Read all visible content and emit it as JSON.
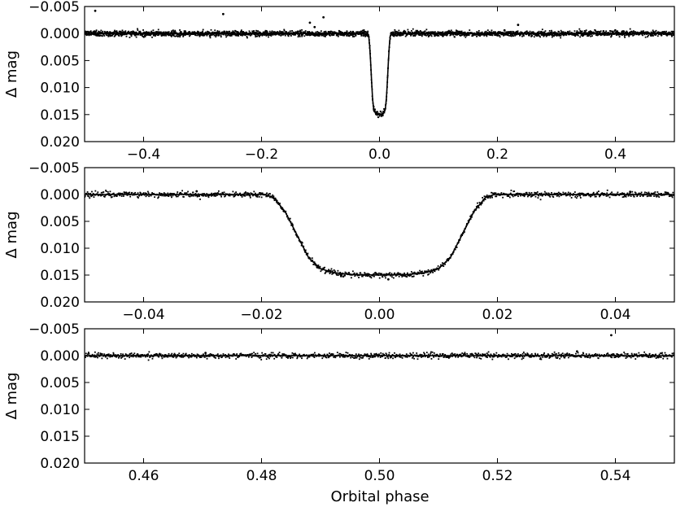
{
  "colors": {
    "data": "#000000",
    "model": "#000000",
    "axes": "#000000",
    "background": "#ffffff"
  },
  "chart_data": [
    {
      "type": "scatter",
      "panel": "top",
      "xlabel": "",
      "ylabel": "Δ mag",
      "xlim": [
        -0.5,
        0.5
      ],
      "ylim": [
        0.02,
        -0.005
      ],
      "y_inverted": true,
      "grid": false,
      "xticks": [
        -0.4,
        -0.2,
        0.0,
        0.2,
        0.4
      ],
      "xtick_labels": [
        "−0.4",
        "−0.2",
        "0.0",
        "0.2",
        "0.4"
      ],
      "yticks": [
        -0.005,
        0.0,
        0.005,
        0.01,
        0.015,
        0.02
      ],
      "ytick_labels": [
        "−0.005",
        "0.000",
        "0.005",
        "0.010",
        "0.015",
        "0.020"
      ],
      "model": {
        "name": "",
        "x": [
          -0.5,
          -0.05,
          -0.0195,
          -0.018,
          -0.016,
          -0.014,
          -0.012,
          -0.01,
          -0.008,
          -0.005,
          0.0,
          0.005,
          0.008,
          0.01,
          0.012,
          0.014,
          0.016,
          0.018,
          0.0195,
          0.05,
          0.5
        ],
        "y": [
          0,
          0,
          0,
          0.0005,
          0.0032,
          0.0075,
          0.0118,
          0.0138,
          0.0145,
          0.0149,
          0.015,
          0.0149,
          0.0145,
          0.0138,
          0.0118,
          0.0075,
          0.0032,
          0.0005,
          0,
          0,
          0
        ]
      },
      "data": {
        "noise": 0.00025,
        "outliers": [
          [
            -0.482,
            -0.0042
          ],
          [
            -0.265,
            -0.0036
          ],
          [
            -0.118,
            -0.002
          ],
          [
            -0.095,
            -0.003
          ],
          [
            -0.11,
            -0.0012
          ],
          [
            -0.045,
            -0.0003
          ],
          [
            0.235,
            -0.0016
          ],
          [
            0.212,
            -0.0006
          ]
        ]
      }
    },
    {
      "type": "scatter",
      "panel": "middle",
      "xlabel": "",
      "ylabel": "Δ mag",
      "xlim": [
        -0.05,
        0.05
      ],
      "ylim": [
        0.02,
        -0.005
      ],
      "y_inverted": true,
      "grid": false,
      "xticks": [
        -0.04,
        -0.02,
        0.0,
        0.02,
        0.04
      ],
      "xtick_labels": [
        "−0.04",
        "−0.02",
        "0.00",
        "0.02",
        "0.04"
      ],
      "yticks": [
        -0.005,
        0.0,
        0.005,
        0.01,
        0.015,
        0.02
      ],
      "ytick_labels": [
        "−0.005",
        "0.000",
        "0.005",
        "0.010",
        "0.015",
        "0.020"
      ],
      "model": {
        "name": "",
        "x": [
          -0.05,
          -0.0195,
          -0.018,
          -0.016,
          -0.014,
          -0.012,
          -0.01,
          -0.008,
          -0.005,
          0.0,
          0.005,
          0.008,
          0.01,
          0.012,
          0.014,
          0.016,
          0.018,
          0.0195,
          0.05
        ],
        "y": [
          0,
          0,
          0.0005,
          0.0032,
          0.0075,
          0.0118,
          0.0138,
          0.0145,
          0.0149,
          0.015,
          0.0149,
          0.0145,
          0.0138,
          0.0118,
          0.0075,
          0.0032,
          0.0005,
          0,
          0
        ]
      },
      "data": {
        "noise": 0.00025,
        "outliers": [
          [
            -0.031,
            -0.0006
          ],
          [
            0.0015,
            0.0158
          ],
          [
            -0.0065,
            0.0152
          ],
          [
            0.0425,
            -0.0005
          ]
        ]
      }
    },
    {
      "type": "scatter",
      "panel": "bottom",
      "xlabel": "Orbital phase",
      "ylabel": "Δ mag",
      "xlim": [
        0.45,
        0.55
      ],
      "ylim": [
        0.02,
        -0.005
      ],
      "y_inverted": true,
      "grid": false,
      "xticks": [
        0.46,
        0.48,
        0.5,
        0.52,
        0.54
      ],
      "xtick_labels": [
        "0.46",
        "0.48",
        "0.50",
        "0.52",
        "0.54"
      ],
      "yticks": [
        -0.005,
        0.0,
        0.005,
        0.01,
        0.015,
        0.02
      ],
      "ytick_labels": [
        "−0.005",
        "0.000",
        "0.005",
        "0.010",
        "0.015",
        "0.020"
      ],
      "model": {
        "name": "",
        "x": [
          0.45,
          0.55
        ],
        "y": [
          0,
          0
        ]
      },
      "data": {
        "noise": 0.00025,
        "outliers": [
          [
            0.5393,
            -0.0038
          ],
          [
            0.5335,
            -0.0008
          ],
          [
            0.4705,
            -0.0005
          ]
        ]
      }
    }
  ]
}
